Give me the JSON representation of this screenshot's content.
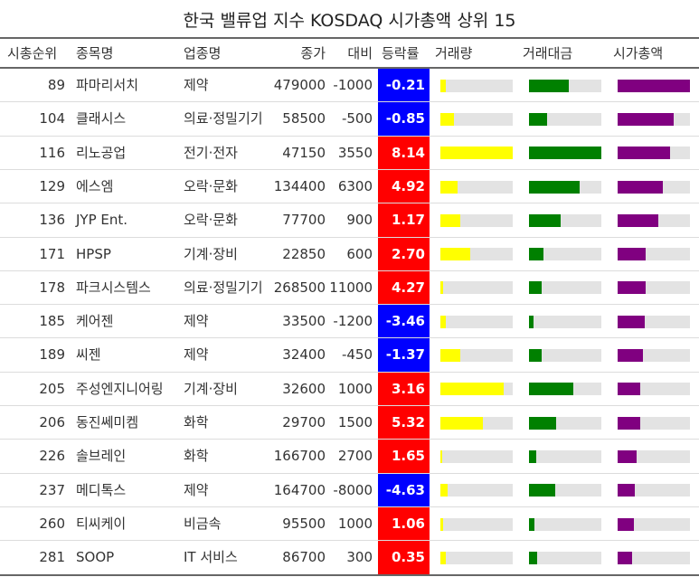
{
  "title": "한국 밸류업 지수 KOSDAQ 시가총액 상위 15",
  "headers": {
    "rank": "시총순위",
    "name": "종목명",
    "sector": "업종명",
    "close": "종가",
    "change": "대비",
    "rate": "등락률",
    "volume": "거래량",
    "amount": "거래대금",
    "mcap": "시가총액"
  },
  "colors": {
    "up": "#ff0000",
    "down": "#0000ff",
    "volume_bar": "#ffff00",
    "amount_bar": "#008000",
    "mcap_bar": "#800080",
    "track": "#e3e3e3"
  },
  "chart_data": {
    "type": "table",
    "bar_scale": "relative to column maximum (0–1)",
    "rows": [
      {
        "rank": "89",
        "name": "파마리서치",
        "sector": "제약",
        "close": "479000",
        "change": "-1000",
        "rate": "-0.21",
        "volume": 0.07,
        "amount": 0.55,
        "mcap": 1.0
      },
      {
        "rank": "104",
        "name": "클래시스",
        "sector": "의료·정밀기기",
        "close": "58500",
        "change": "-500",
        "rate": "-0.85",
        "volume": 0.19,
        "amount": 0.25,
        "mcap": 0.77
      },
      {
        "rank": "116",
        "name": "리노공업",
        "sector": "전기·전자",
        "close": "47150",
        "change": "3550",
        "rate": "8.14",
        "volume": 1.0,
        "amount": 1.0,
        "mcap": 0.73
      },
      {
        "rank": "129",
        "name": "에스엠",
        "sector": "오락·문화",
        "close": "134400",
        "change": "6300",
        "rate": "4.92",
        "volume": 0.24,
        "amount": 0.7,
        "mcap": 0.62
      },
      {
        "rank": "136",
        "name": "JYP Ent.",
        "sector": "오락·문화",
        "close": "77700",
        "change": "900",
        "rate": "1.17",
        "volume": 0.27,
        "amount": 0.44,
        "mcap": 0.56
      },
      {
        "rank": "171",
        "name": "HPSP",
        "sector": "기계·장비",
        "close": "22850",
        "change": "600",
        "rate": "2.70",
        "volume": 0.41,
        "amount": 0.2,
        "mcap": 0.39
      },
      {
        "rank": "178",
        "name": "파크시스템스",
        "sector": "의료·정밀기기",
        "close": "268500",
        "change": "11000",
        "rate": "4.27",
        "volume": 0.04,
        "amount": 0.17,
        "mcap": 0.39
      },
      {
        "rank": "185",
        "name": "케어젠",
        "sector": "제약",
        "close": "33500",
        "change": "-1200",
        "rate": "-3.46",
        "volume": 0.08,
        "amount": 0.06,
        "mcap": 0.37
      },
      {
        "rank": "189",
        "name": "씨젠",
        "sector": "제약",
        "close": "32400",
        "change": "-450",
        "rate": "-1.37",
        "volume": 0.27,
        "amount": 0.17,
        "mcap": 0.35
      },
      {
        "rank": "205",
        "name": "주성엔지니어링",
        "sector": "기계·장비",
        "close": "32600",
        "change": "1000",
        "rate": "3.16",
        "volume": 0.87,
        "amount": 0.61,
        "mcap": 0.31
      },
      {
        "rank": "206",
        "name": "동진쎄미켐",
        "sector": "화학",
        "close": "29700",
        "change": "1500",
        "rate": "5.32",
        "volume": 0.59,
        "amount": 0.37,
        "mcap": 0.31
      },
      {
        "rank": "226",
        "name": "솔브레인",
        "sector": "화학",
        "close": "166700",
        "change": "2700",
        "rate": "1.65",
        "volume": 0.03,
        "amount": 0.1,
        "mcap": 0.26
      },
      {
        "rank": "237",
        "name": "메디톡스",
        "sector": "제약",
        "close": "164700",
        "change": "-8000",
        "rate": "-4.63",
        "volume": 0.1,
        "amount": 0.36,
        "mcap": 0.24
      },
      {
        "rank": "260",
        "name": "티씨케이",
        "sector": "비금속",
        "close": "95500",
        "change": "1000",
        "rate": "1.06",
        "volume": 0.04,
        "amount": 0.07,
        "mcap": 0.22
      },
      {
        "rank": "281",
        "name": "SOOP",
        "sector": "IT 서비스",
        "close": "86700",
        "change": "300",
        "rate": "0.35",
        "volume": 0.07,
        "amount": 0.11,
        "mcap": 0.2
      }
    ]
  }
}
